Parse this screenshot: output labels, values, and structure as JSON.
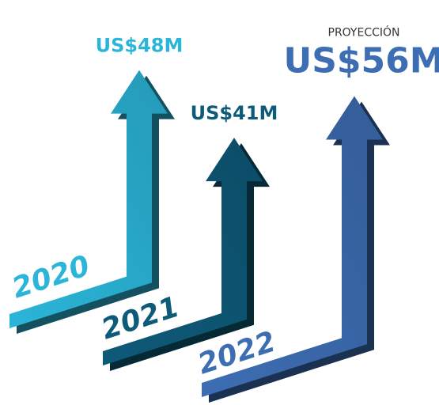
{
  "chart_data": {
    "type": "arrow",
    "categories": [
      "2020",
      "2021",
      "2022"
    ],
    "values": [
      48,
      41,
      56
    ],
    "value_labels": [
      "US$48M",
      "US$41M",
      "US$56M"
    ],
    "colors": [
      "#2bb5d8",
      "#0e5a79",
      "#3d6db3"
    ],
    "annotation": "PROYECCIÓN"
  }
}
